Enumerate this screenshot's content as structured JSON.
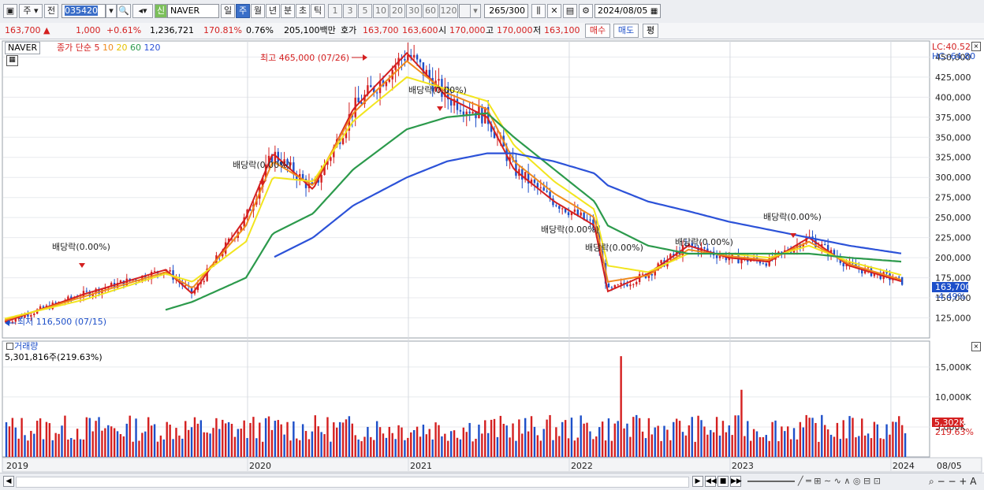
{
  "toolbar": {
    "period_label": "주",
    "prev_label": "전",
    "code": "035420",
    "name_prefix": "신",
    "stock_name": "NAVER",
    "periods": [
      "일",
      "주",
      "월",
      "년",
      "분",
      "초",
      "틱"
    ],
    "active_period": "주",
    "counts": [
      "1",
      "3",
      "5",
      "10",
      "20",
      "30",
      "60",
      "120"
    ],
    "bar_count": "265",
    "bar_total": "/300",
    "date": "2024/08/05"
  },
  "quote": {
    "price": "163,700",
    "change": "1,000",
    "change_pct": "+0.61%",
    "volume": "1,236,721",
    "vol_ratio": "170.81%",
    "turnover": "0.76%",
    "amount": "205,100백만",
    "bid_label": "호가",
    "ask": "163,700",
    "bid": "163,600",
    "open_label": "시",
    "open": "170,000",
    "high_label": "고",
    "high": "170,000",
    "low_label": "저",
    "low": "163,100",
    "buy_label": "매수",
    "sell_label": "매도",
    "eval_label": "평"
  },
  "legend": {
    "name": "NAVER",
    "type": "종가 단순",
    "periods": [
      "5",
      "10",
      "20",
      "60",
      "120"
    ]
  },
  "indicators": {
    "lc": "LC:40.52",
    "hc": "HC:-64.80"
  },
  "price_axis": {
    "ticks": [
      "450,000",
      "425,000",
      "400,000",
      "375,000",
      "350,000",
      "325,000",
      "300,000",
      "275,000",
      "250,000",
      "225,000",
      "200,000",
      "175,000",
      "150,000",
      "125,000"
    ],
    "current": "163,700",
    "current_pct": "-4.49%"
  },
  "annotations": {
    "high": "최고 465,000 (07/26)",
    "low": "최저 116,500 (07/15)",
    "dividends": [
      "배당락(0.00%)",
      "배당락(0.00%)",
      "배당락(0.00%)",
      "배당락(0.00%)",
      "배당락(0.00%)",
      "배당락(0.00%)",
      "배당락(0.00%)"
    ]
  },
  "volume_panel": {
    "title": "거래량",
    "value": "5,301,816주(219.63%)",
    "ticks": [
      "15,000K",
      "10,000K",
      "5,000K"
    ],
    "current": "5,302K",
    "current_pct": "219.63%"
  },
  "x_axis": {
    "labels": [
      "2019",
      "2020",
      "2021",
      "2022",
      "2023",
      "2024",
      "08/05"
    ]
  },
  "chart_data": {
    "type": "line",
    "x": [
      "2019-01",
      "2019-07",
      "2020-01",
      "2020-03",
      "2020-07",
      "2020-09",
      "2020-12",
      "2021-03",
      "2021-07",
      "2021-10",
      "2022-01",
      "2022-03",
      "2022-06",
      "2022-09",
      "2022-10",
      "2023-01",
      "2023-04",
      "2023-07",
      "2023-10",
      "2024-01",
      "2024-04",
      "2024-08"
    ],
    "series": [
      {
        "name": "5",
        "color": "#d42020",
        "values": [
          120000,
          155000,
          185000,
          155000,
          250000,
          330000,
          285000,
          385000,
          455000,
          400000,
          375000,
          310000,
          270000,
          240000,
          158000,
          180000,
          215000,
          200000,
          195000,
          225000,
          190000,
          170000
        ]
      },
      {
        "name": "10",
        "color": "#f08a1c",
        "values": [
          122000,
          152000,
          182000,
          162000,
          240000,
          320000,
          290000,
          380000,
          445000,
          405000,
          385000,
          320000,
          280000,
          250000,
          170000,
          178000,
          210000,
          202000,
          197000,
          220000,
          192000,
          172000
        ]
      },
      {
        "name": "20",
        "color": "#f2e51e",
        "values": [
          124000,
          148000,
          180000,
          170000,
          220000,
          300000,
          295000,
          370000,
          425000,
          410000,
          395000,
          340000,
          295000,
          260000,
          190000,
          182000,
          205000,
          205000,
          200000,
          215000,
          195000,
          178000
        ]
      },
      {
        "name": "60",
        "color": "#2c9a4c",
        "values": [
          null,
          null,
          135000,
          145000,
          175000,
          230000,
          255000,
          310000,
          360000,
          375000,
          380000,
          350000,
          310000,
          270000,
          240000,
          215000,
          205000,
          205000,
          205000,
          205000,
          200000,
          195000
        ]
      },
      {
        "name": "120",
        "color": "#2c52d8",
        "values": [
          null,
          null,
          null,
          null,
          null,
          200000,
          225000,
          265000,
          300000,
          320000,
          330000,
          330000,
          320000,
          305000,
          290000,
          270000,
          258000,
          245000,
          235000,
          225000,
          215000,
          205000
        ]
      }
    ],
    "ylim": [
      100000,
      470000
    ],
    "volume_unit": "K",
    "volume_ylim": [
      0,
      18000
    ],
    "volume_highlights": [
      {
        "x": "2022-11",
        "value": 16800
      },
      {
        "x": "2023-08",
        "value": 11200
      },
      {
        "x": "2024-08",
        "value": 5302
      }
    ]
  },
  "colors": {
    "up": "#d42020",
    "down": "#1d4fc9",
    "ma5": "#d42020",
    "ma10": "#f08a1c",
    "ma20": "#f2e51e",
    "ma60": "#2c9a4c",
    "ma120": "#2c52d8"
  }
}
